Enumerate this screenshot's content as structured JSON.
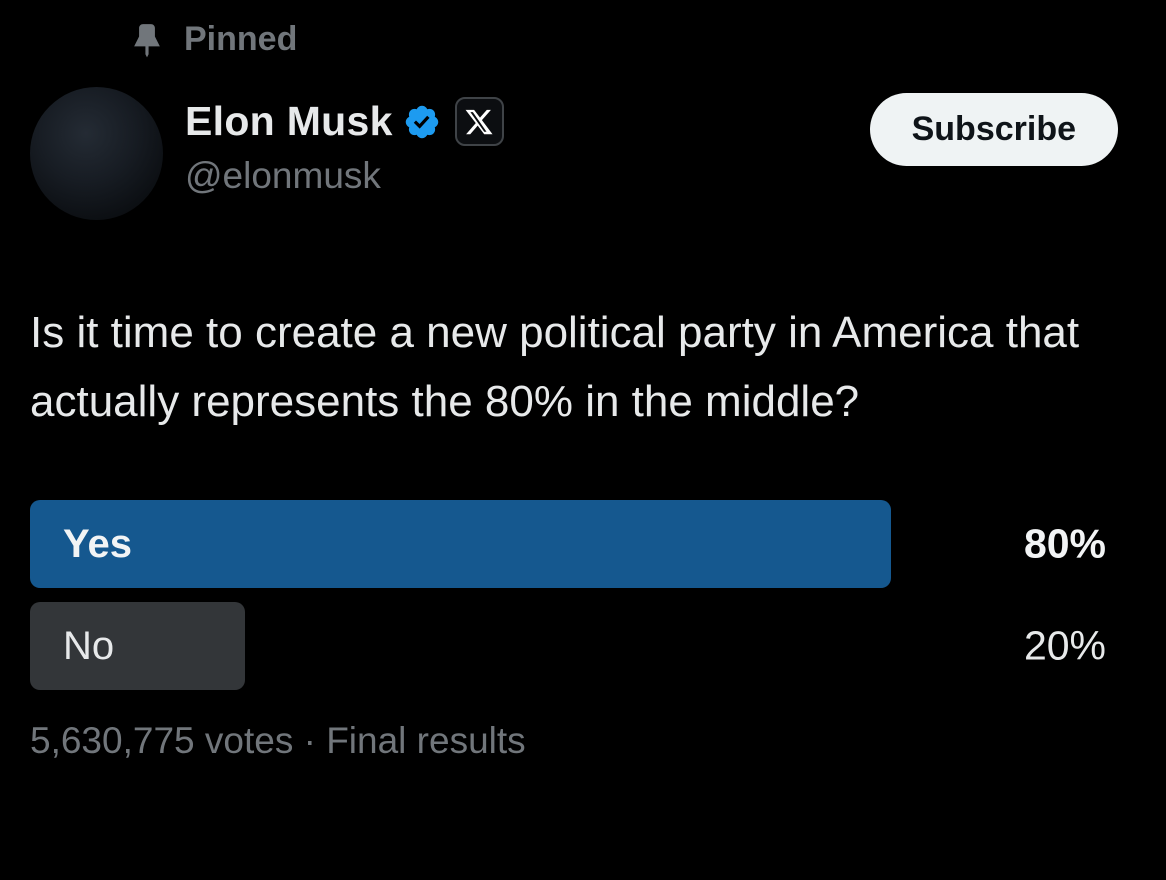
{
  "pinned": {
    "label": "Pinned"
  },
  "header": {
    "name": "Elon Musk",
    "handle": "@elonmusk",
    "subscribe_label": "Subscribe",
    "badges": [
      "verified-badge",
      "x-affiliate-badge"
    ]
  },
  "tweet": {
    "text": "Is it time to create a new political party in America that actually represents the 80% in the middle?"
  },
  "poll": {
    "type": "poll-final-results",
    "options": [
      {
        "label": "Yes",
        "percent": 80,
        "percent_label": "80%",
        "winner": true
      },
      {
        "label": "No",
        "percent": 20,
        "percent_label": "20%",
        "winner": false
      }
    ],
    "footer": "5,630,775 votes · Final results"
  },
  "colors": {
    "background": "#000000",
    "primary_text": "#e7e9ea",
    "muted_text": "#71767b",
    "winner_bar_blue": "#15588f",
    "loser_bar_gray": "#333639",
    "verified_badge_blue": "#1d9bf0",
    "subscribe_bg": "#eff3f4",
    "subscribe_text": "#0f1419"
  }
}
